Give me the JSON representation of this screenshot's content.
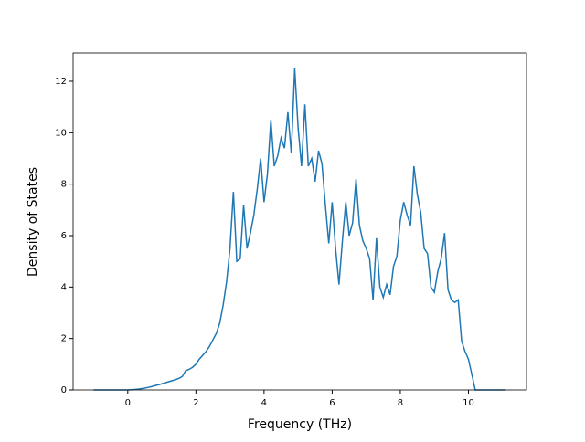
{
  "chart_data": {
    "type": "line",
    "xlabel": "Frequency (THz)",
    "ylabel": "Density of States",
    "x": [
      -1.0,
      -0.9,
      -0.8,
      -0.7,
      -0.6,
      -0.5,
      -0.4,
      -0.3,
      -0.2,
      -0.1,
      0.0,
      0.1,
      0.2,
      0.3,
      0.4,
      0.5,
      0.6,
      0.7,
      0.8,
      0.9,
      1.0,
      1.1,
      1.2,
      1.3,
      1.4,
      1.5,
      1.6,
      1.7,
      1.8,
      1.9,
      2.0,
      2.1,
      2.2,
      2.3,
      2.4,
      2.5,
      2.6,
      2.7,
      2.8,
      2.9,
      3.0,
      3.1,
      3.2,
      3.3,
      3.4,
      3.5,
      3.6,
      3.7,
      3.8,
      3.9,
      4.0,
      4.1,
      4.2,
      4.3,
      4.4,
      4.5,
      4.6,
      4.7,
      4.8,
      4.9,
      5.0,
      5.1,
      5.2,
      5.3,
      5.4,
      5.5,
      5.6,
      5.7,
      5.8,
      5.9,
      6.0,
      6.1,
      6.2,
      6.3,
      6.4,
      6.5,
      6.6,
      6.7,
      6.8,
      6.9,
      7.0,
      7.1,
      7.2,
      7.3,
      7.4,
      7.5,
      7.6,
      7.7,
      7.8,
      7.9,
      8.0,
      8.1,
      8.2,
      8.3,
      8.4,
      8.5,
      8.6,
      8.7,
      8.8,
      8.9,
      9.0,
      9.1,
      9.2,
      9.3,
      9.4,
      9.5,
      9.6,
      9.7,
      9.8,
      9.9,
      10.0,
      10.1,
      10.2,
      10.3,
      10.4,
      10.5,
      10.6,
      10.7,
      10.8,
      10.9,
      11.0,
      11.1
    ],
    "series": [
      {
        "color": "#1f77b4",
        "values": [
          0,
          0,
          0,
          0,
          0,
          0,
          0,
          0,
          0,
          0,
          0,
          0.01,
          0.02,
          0.03,
          0.05,
          0.07,
          0.1,
          0.13,
          0.17,
          0.2,
          0.24,
          0.28,
          0.32,
          0.36,
          0.4,
          0.45,
          0.52,
          0.75,
          0.8,
          0.88,
          1.0,
          1.2,
          1.35,
          1.5,
          1.7,
          1.95,
          2.2,
          2.6,
          3.3,
          4.2,
          5.5,
          7.7,
          5.0,
          5.1,
          7.2,
          5.5,
          6.1,
          6.8,
          7.8,
          9.0,
          7.3,
          8.4,
          10.5,
          8.7,
          9.1,
          9.8,
          9.4,
          10.8,
          9.2,
          12.5,
          10.2,
          8.7,
          11.1,
          8.7,
          9.0,
          8.1,
          9.3,
          8.8,
          7.2,
          5.7,
          7.3,
          5.5,
          4.1,
          5.8,
          7.3,
          6.0,
          6.5,
          8.2,
          6.4,
          5.8,
          5.5,
          5.1,
          3.5,
          5.9,
          4.0,
          3.6,
          4.1,
          3.7,
          4.8,
          5.2,
          6.6,
          7.3,
          6.8,
          6.4,
          8.7,
          7.6,
          6.9,
          5.5,
          5.3,
          4.0,
          3.8,
          4.6,
          5.1,
          6.1,
          3.9,
          3.5,
          3.4,
          3.5,
          1.9,
          1.5,
          1.2,
          0.6,
          0,
          0,
          0,
          0,
          0,
          0,
          0,
          0,
          0,
          0
        ]
      }
    ],
    "xlim": [
      -1.605,
      11.705
    ],
    "ylim": [
      0,
      13.1
    ],
    "xticks": [
      0,
      2,
      4,
      6,
      8,
      10
    ],
    "yticks": [
      0,
      2,
      4,
      6,
      8,
      10,
      12
    ]
  }
}
